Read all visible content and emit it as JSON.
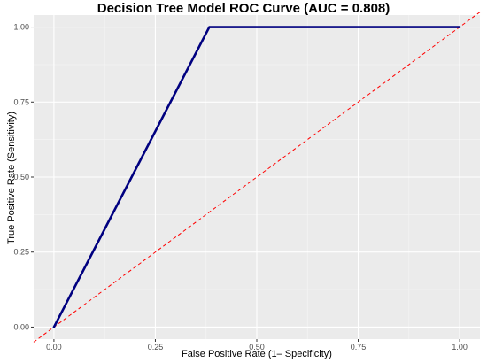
{
  "chart_data": {
    "type": "line",
    "title": "Decision Tree Model ROC Curve (AUC = 0.808)",
    "xlabel": "False Positive Rate (1– Specificity)",
    "ylabel": "True Positive Rate (Sensitivity)",
    "xlim": [
      -0.05,
      1.05
    ],
    "ylim": [
      -0.04,
      1.04
    ],
    "x_ticks": [
      0.0,
      0.25,
      0.5,
      0.75,
      1.0
    ],
    "x_tick_labels": [
      "0.00",
      "0.25",
      "0.50",
      "0.75",
      "1.00"
    ],
    "y_ticks": [
      0.0,
      0.25,
      0.5,
      0.75,
      1.0
    ],
    "y_tick_labels": [
      "0.00",
      "0.25",
      "0.50",
      "0.75",
      "1.00"
    ],
    "grid": true,
    "series": [
      {
        "x": [
          0.0,
          0.383,
          1.0
        ],
        "y": [
          0.0,
          1.0,
          1.0
        ],
        "color": "#000080",
        "style": "solid"
      }
    ],
    "reference_line": {
      "x": [
        -0.05,
        1.05
      ],
      "y": [
        -0.05,
        1.05
      ],
      "color": "#ff0000",
      "style": "dashed"
    },
    "colors": {
      "panel": "#ebebeb",
      "grid_major": "#ffffff",
      "grid_minor": "#f5f5f5"
    }
  }
}
